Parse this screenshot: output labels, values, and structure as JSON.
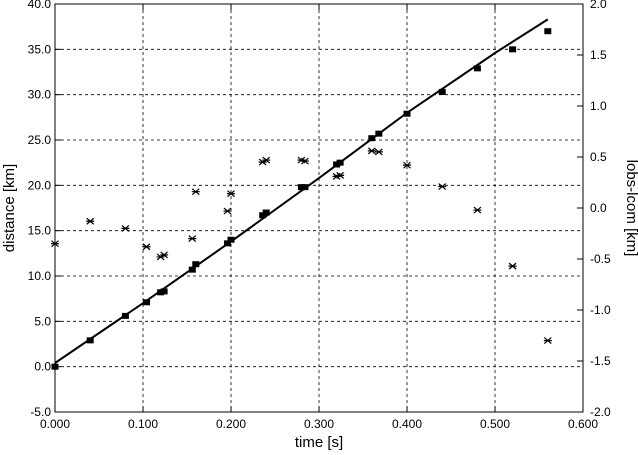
{
  "chart_data": {
    "type": "scatter",
    "title": "",
    "xlabel": "time [s]",
    "ylabel": "distance [km]",
    "y2label": "lobs-lcom [km]",
    "xlim": [
      0.0,
      0.6
    ],
    "ylim": [
      -5.0,
      40.0
    ],
    "y2lim": [
      -2.0,
      2.0
    ],
    "grid": true,
    "x_ticks": [
      "0.000",
      "0.100",
      "0.200",
      "0.300",
      "0.400",
      "0.500",
      "0.600"
    ],
    "y_ticks": [
      "-5.0",
      "0.0",
      "5.0",
      "10.0",
      "15.0",
      "20.0",
      "25.0",
      "30.0",
      "35.0",
      "40.0"
    ],
    "y2_ticks": [
      "-2.0",
      "-1.5",
      "-1.0",
      "-0.5",
      "0.0",
      "0.5",
      "1.0",
      "1.5",
      "2.0"
    ],
    "series": [
      {
        "marker": "square",
        "axis": "left",
        "points": [
          [
            0.0,
            0.0
          ],
          [
            0.04,
            2.9
          ],
          [
            0.08,
            5.6
          ],
          [
            0.104,
            7.1
          ],
          [
            0.12,
            8.2
          ],
          [
            0.124,
            8.3
          ],
          [
            0.156,
            10.7
          ],
          [
            0.16,
            11.3
          ],
          [
            0.196,
            13.6
          ],
          [
            0.2,
            14.0
          ],
          [
            0.236,
            16.7
          ],
          [
            0.24,
            17.0
          ],
          [
            0.28,
            19.8
          ],
          [
            0.284,
            19.8
          ],
          [
            0.32,
            22.3
          ],
          [
            0.324,
            22.5
          ],
          [
            0.36,
            25.2
          ],
          [
            0.368,
            25.7
          ],
          [
            0.4,
            27.9
          ],
          [
            0.44,
            30.3
          ],
          [
            0.48,
            32.9
          ],
          [
            0.52,
            35.0
          ],
          [
            0.56,
            37.0
          ]
        ]
      },
      {
        "marker": "asterisk",
        "axis": "right",
        "points": [
          [
            0.0,
            -0.35
          ],
          [
            0.04,
            -0.13
          ],
          [
            0.08,
            -0.2
          ],
          [
            0.104,
            -0.38
          ],
          [
            0.12,
            -0.48
          ],
          [
            0.124,
            -0.46
          ],
          [
            0.156,
            -0.3
          ],
          [
            0.16,
            0.16
          ],
          [
            0.196,
            -0.03
          ],
          [
            0.2,
            0.14
          ],
          [
            0.236,
            0.45
          ],
          [
            0.24,
            0.47
          ],
          [
            0.28,
            0.47
          ],
          [
            0.284,
            0.46
          ],
          [
            0.32,
            0.31
          ],
          [
            0.324,
            0.32
          ],
          [
            0.36,
            0.56
          ],
          [
            0.368,
            0.55
          ],
          [
            0.4,
            0.42
          ],
          [
            0.44,
            0.21
          ],
          [
            0.48,
            -0.02
          ],
          [
            0.52,
            -0.57
          ],
          [
            0.56,
            -1.3
          ]
        ]
      },
      {
        "marker": "line",
        "axis": "left",
        "points": [
          [
            0.0,
            0.4
          ],
          [
            0.1,
            7.0
          ],
          [
            0.2,
            13.8
          ],
          [
            0.3,
            20.8
          ],
          [
            0.4,
            28.0
          ],
          [
            0.5,
            34.6
          ],
          [
            0.56,
            38.3
          ]
        ]
      }
    ]
  }
}
